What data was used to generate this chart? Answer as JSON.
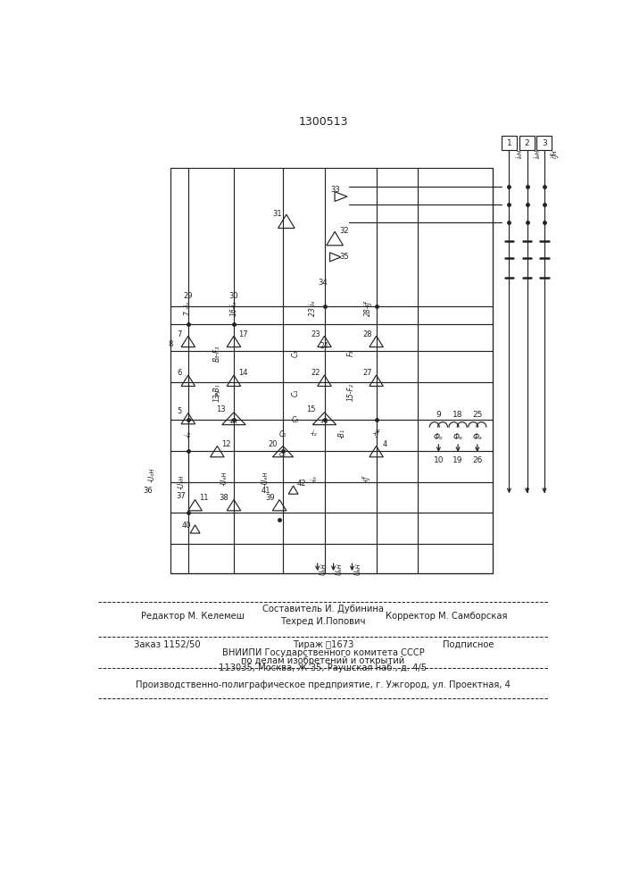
{
  "title": "1300513",
  "bg": "#ffffff",
  "lc": "#222222",
  "footer": {
    "editor": "Редактор М. Келемеш",
    "composer": "Составитель И. Дубинина",
    "techred": "Техред И.Попович",
    "corrector": "Корректор М. Самборская",
    "order": "Заказ 1152/50",
    "tirazh": "Тираж ٳ1673",
    "podpisnoe": "Подписное",
    "vniip1": "ВНИИПИ Государственного комитета СССР",
    "vniip2": "по делам изобретений и открытий",
    "vniip3": "113035, Москва, Ж-35, Раушская наб., д. 4/5",
    "proizv": "Производственно-полиграфическое предприятие, г. Ужгород, ул. Проектная, 4"
  }
}
